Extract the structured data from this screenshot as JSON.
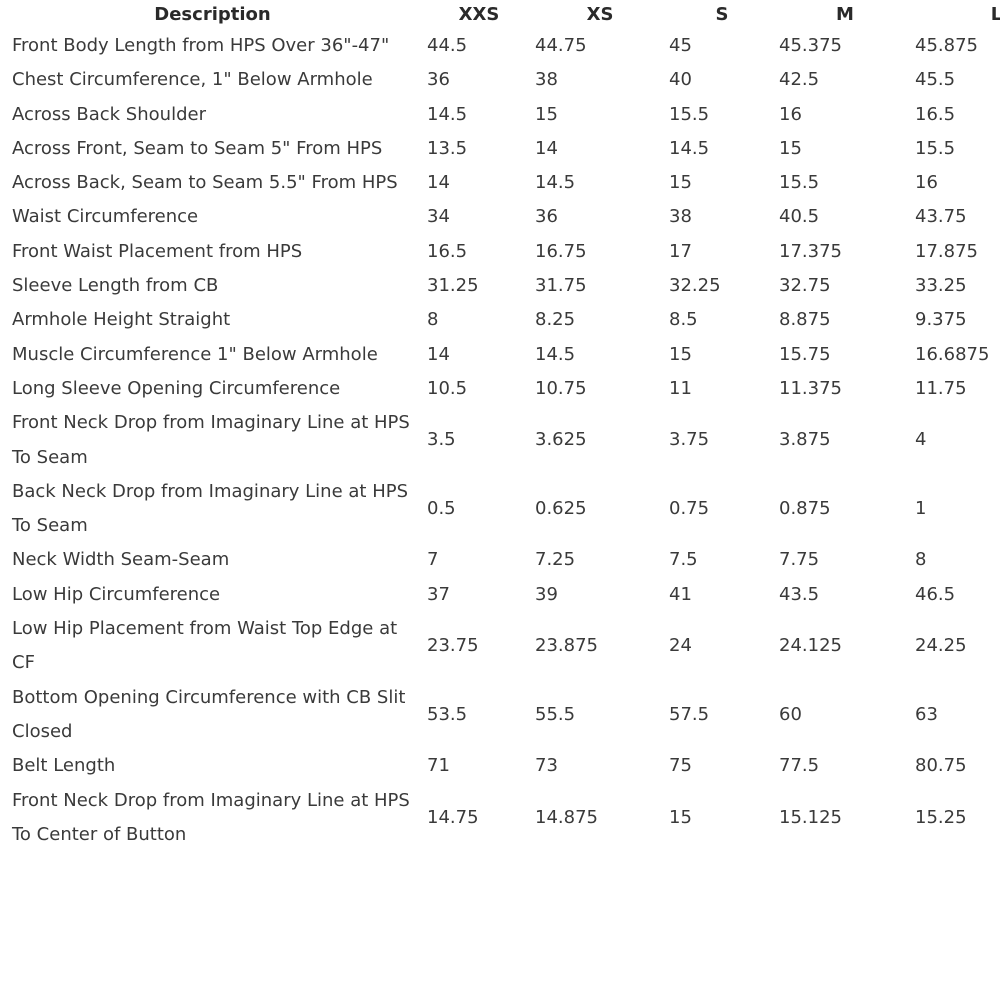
{
  "table": {
    "header": [
      "Description",
      "XXS",
      "XS",
      "S",
      "M",
      "L"
    ],
    "rows": [
      [
        "Front Body Length from HPS Over 36\"-47\"",
        "44.5",
        "44.75",
        "45",
        "45.375",
        "45.875"
      ],
      [
        "Chest Circumference, 1\" Below Armhole",
        "36",
        "38",
        "40",
        "42.5",
        "45.5"
      ],
      [
        "Across Back Shoulder",
        "14.5",
        "15",
        "15.5",
        "16",
        "16.5"
      ],
      [
        "Across Front, Seam to Seam 5\" From HPS",
        "13.5",
        "14",
        "14.5",
        "15",
        "15.5"
      ],
      [
        "Across Back, Seam to Seam 5.5\" From HPS",
        "14",
        "14.5",
        "15",
        "15.5",
        "16"
      ],
      [
        "Waist Circumference",
        "34",
        "36",
        "38",
        "40.5",
        "43.75"
      ],
      [
        "Front Waist Placement from HPS",
        "16.5",
        "16.75",
        "17",
        "17.375",
        "17.875"
      ],
      [
        "Sleeve Length from CB",
        "31.25",
        "31.75",
        "32.25",
        "32.75",
        "33.25"
      ],
      [
        "Armhole Height Straight",
        "8",
        "8.25",
        "8.5",
        "8.875",
        "9.375"
      ],
      [
        "Muscle Circumference 1\" Below Armhole",
        "14",
        "14.5",
        "15",
        "15.75",
        "16.6875"
      ],
      [
        "Long Sleeve Opening Circumference",
        "10.5",
        "10.75",
        "11",
        "11.375",
        "11.75"
      ],
      [
        "Front Neck Drop from Imaginary Line at HPS To Seam",
        "3.5",
        "3.625",
        "3.75",
        "3.875",
        "4"
      ],
      [
        "Back Neck Drop from Imaginary Line at HPS To Seam",
        "0.5",
        "0.625",
        "0.75",
        "0.875",
        "1"
      ],
      [
        "Neck Width Seam-Seam",
        "7",
        "7.25",
        "7.5",
        "7.75",
        "8"
      ],
      [
        "Low Hip Circumference",
        "37",
        "39",
        "41",
        "43.5",
        "46.5"
      ],
      [
        "Low Hip Placement from Waist Top Edge at CF",
        "23.75",
        "23.875",
        "24",
        "24.125",
        "24.25"
      ],
      [
        "Bottom Opening Circumference with CB Slit Closed",
        "53.5",
        "55.5",
        "57.5",
        "60",
        "63"
      ],
      [
        "Belt Length",
        "71",
        "73",
        "75",
        "77.5",
        "80.75"
      ],
      [
        "Front Neck Drop from Imaginary Line at HPS To Center of Button",
        "14.75",
        "14.875",
        "15",
        "15.125",
        "15.25"
      ]
    ]
  }
}
